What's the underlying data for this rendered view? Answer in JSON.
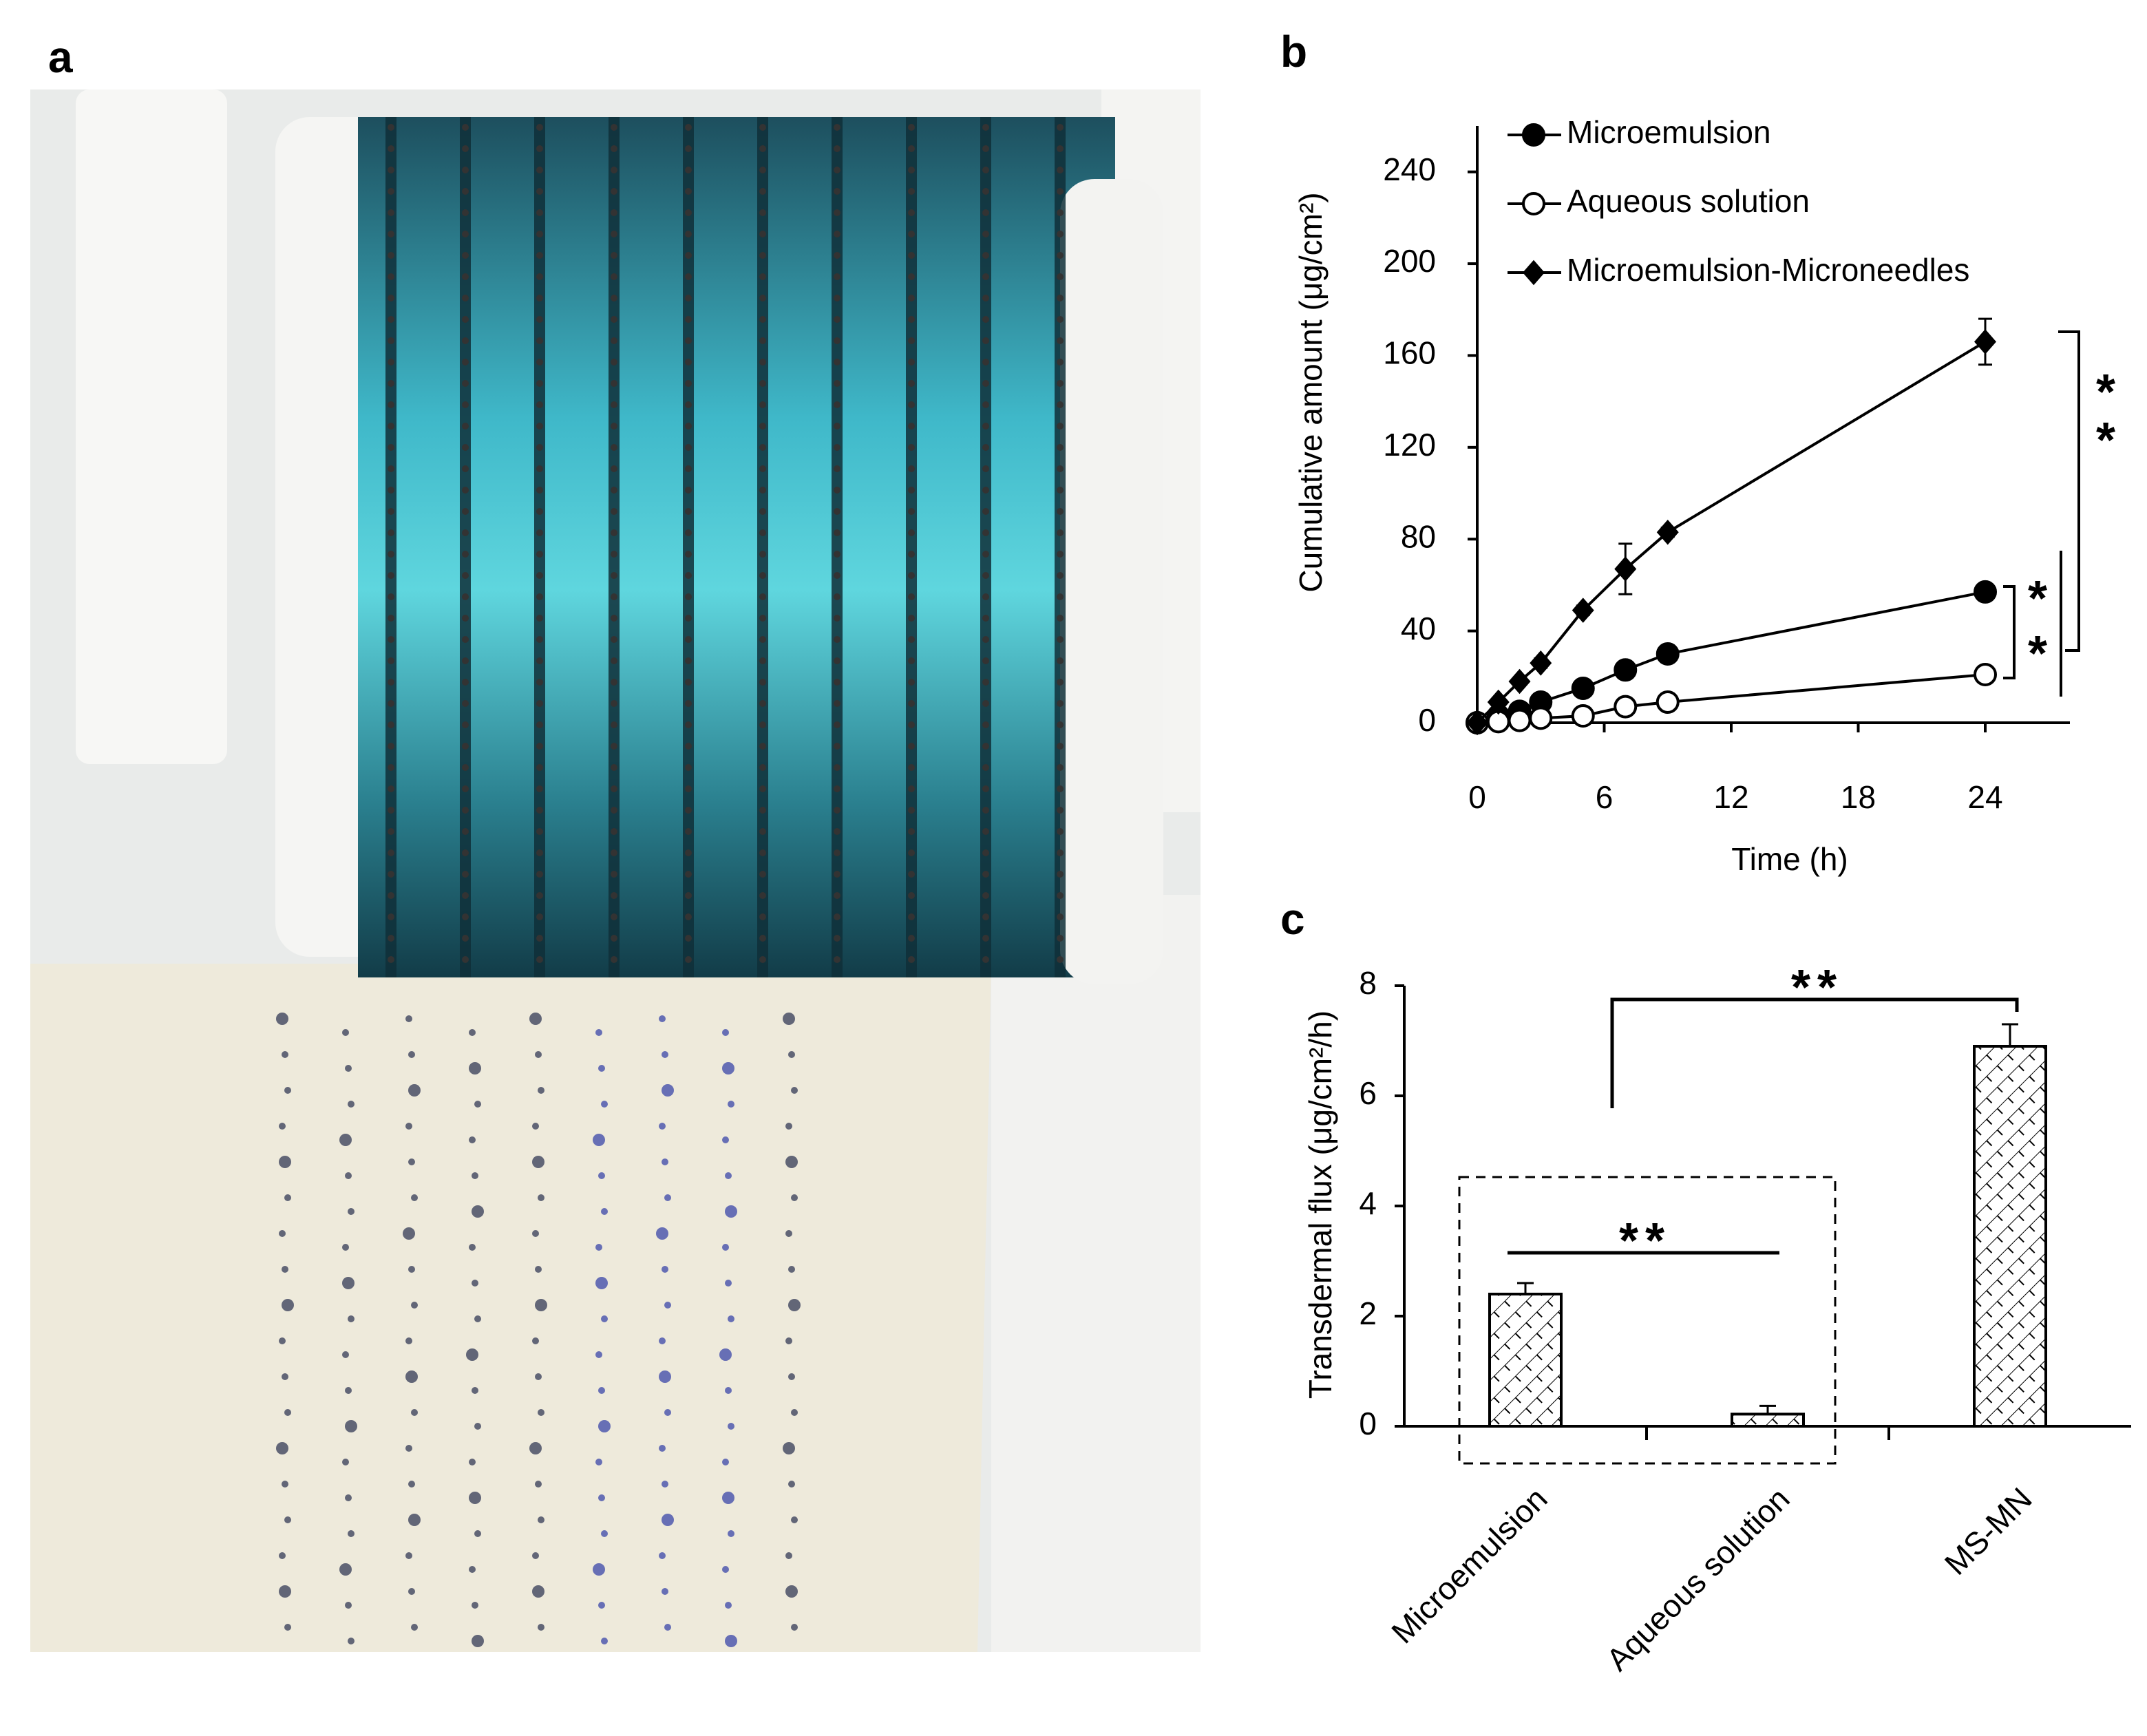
{
  "photo": {
    "panel_label": "a"
  },
  "chart_data": [
    {
      "type": "line",
      "panel_label": "b",
      "x_label": "Time (h)",
      "y_label": "Cumulative amount (μg/cm²)",
      "x": [
        0,
        1,
        2,
        3,
        5,
        7,
        9,
        24
      ],
      "series": [
        {
          "name": "Microemulsion",
          "color": "#000000",
          "marker": "circle",
          "markerfacecolor": "#000000",
          "values": [
            0,
            3,
            5,
            9,
            15,
            23,
            30,
            57
          ],
          "errors": [
            0,
            0.5,
            0.5,
            1,
            1,
            1.5,
            1.5,
            3
          ]
        },
        {
          "name": "Aqueous solution",
          "color": "#000000",
          "marker": "circle",
          "markerfacecolor": "#ffffff",
          "values": [
            0,
            0.5,
            1,
            2,
            3,
            7,
            9,
            21
          ],
          "errors": [
            0,
            0.3,
            0.3,
            0.5,
            0.5,
            1,
            1,
            1.5
          ]
        },
        {
          "name": "Microemulsion-Microneedles",
          "color": "#000000",
          "marker": "diamond",
          "markerfacecolor": "#000000",
          "values": [
            0,
            9,
            18,
            26,
            49,
            67,
            83,
            166
          ],
          "errors": [
            0,
            1,
            1.5,
            2,
            2,
            11,
            2,
            10
          ]
        }
      ],
      "xlim": [
        0,
        28
      ],
      "xticks": [
        0,
        6,
        12,
        18,
        24
      ],
      "ylim": [
        0,
        260
      ],
      "yticks": [
        0,
        40,
        80,
        120,
        160,
        200,
        240
      ],
      "legend": "upper left",
      "annotations": [
        {
          "text": "**"
        },
        {
          "text": "*"
        },
        {
          "text": "*"
        }
      ]
    },
    {
      "type": "bar",
      "panel_label": "c",
      "y_label": "Transdermal flux (μg/cm²/h)",
      "categories": [
        "Microemulsion",
        "Aqueous solution",
        "MS-MN"
      ],
      "values": [
        2.4,
        0.22,
        6.9
      ],
      "errors": [
        0.2,
        0.15,
        0.4
      ],
      "color": "#000000",
      "hatch": "crosshatch",
      "ylim": [
        0,
        8
      ],
      "yticks": [
        0,
        2,
        4,
        6,
        8
      ],
      "annotations": [
        {
          "text": "**"
        },
        {
          "text": "**"
        }
      ]
    }
  ]
}
